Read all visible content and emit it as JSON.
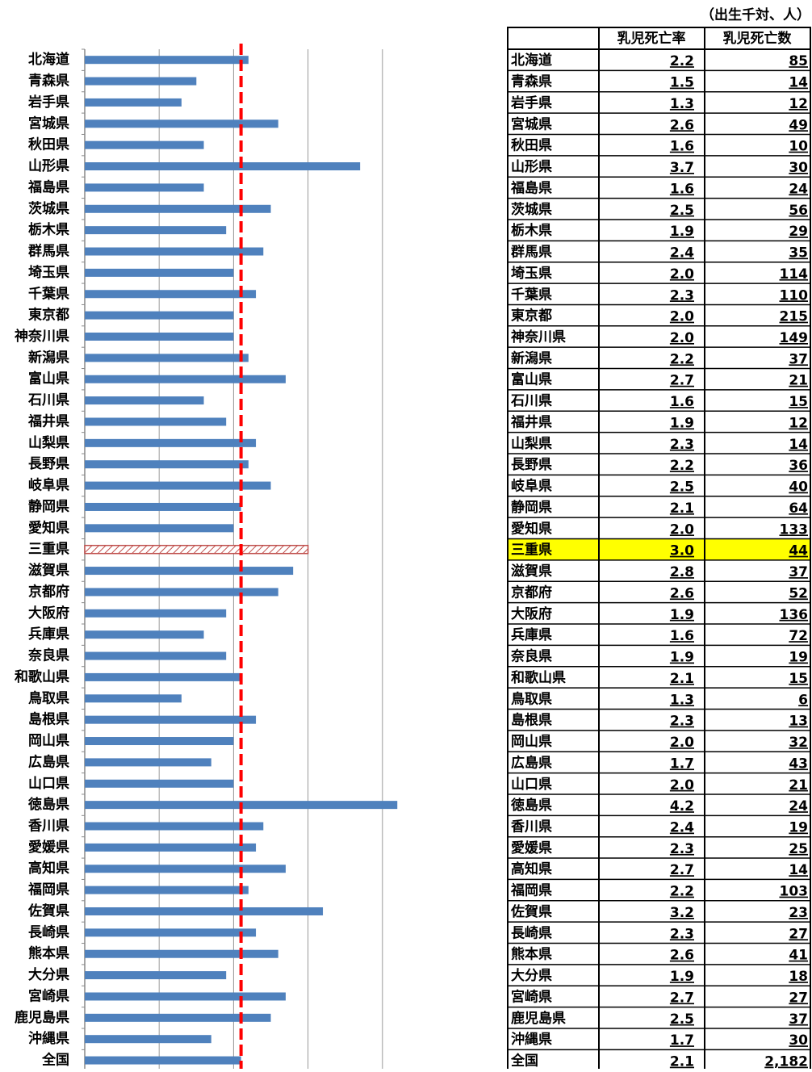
{
  "unit_note": "（出生千対、人）",
  "chart_data": {
    "type": "bar",
    "orientation": "horizontal",
    "categories": [
      "北海道",
      "青森県",
      "岩手県",
      "宮城県",
      "秋田県",
      "山形県",
      "福島県",
      "茨城県",
      "栃木県",
      "群馬県",
      "埼玉県",
      "千葉県",
      "東京都",
      "神奈川県",
      "新潟県",
      "富山県",
      "石川県",
      "福井県",
      "山梨県",
      "長野県",
      "岐阜県",
      "静岡県",
      "愛知県",
      "三重県",
      "滋賀県",
      "京都府",
      "大阪府",
      "兵庫県",
      "奈良県",
      "和歌山県",
      "鳥取県",
      "島根県",
      "岡山県",
      "広島県",
      "山口県",
      "徳島県",
      "香川県",
      "愛媛県",
      "高知県",
      "福岡県",
      "佐賀県",
      "長崎県",
      "熊本県",
      "大分県",
      "宮崎県",
      "鹿児島県",
      "沖縄県",
      "全国"
    ],
    "values": [
      2.2,
      1.5,
      1.3,
      2.6,
      1.6,
      3.7,
      1.6,
      2.5,
      1.9,
      2.4,
      2.0,
      2.3,
      2.0,
      2.0,
      2.2,
      2.7,
      1.6,
      1.9,
      2.3,
      2.2,
      2.5,
      2.1,
      2.0,
      3.0,
      2.8,
      2.6,
      1.9,
      1.6,
      1.9,
      2.1,
      1.3,
      2.3,
      2.0,
      1.7,
      2.0,
      4.2,
      2.4,
      2.3,
      2.7,
      2.2,
      3.2,
      2.3,
      2.6,
      1.9,
      2.7,
      2.5,
      1.7,
      2.1
    ],
    "value_labels": [
      "2.2",
      "1.5",
      "1.3",
      "2.6",
      "1.6",
      "3.7",
      "1.6",
      "2.5",
      "1.9",
      "2.4",
      "2.0",
      "2.3",
      "2.0",
      "2.0",
      "2.2",
      "2.7",
      "1.6",
      "1.9",
      "2.3",
      "2.2",
      "2.5",
      "2.1",
      "2.0",
      "3.0",
      "2.8",
      "2.6",
      "1.9",
      "1.6",
      "1.9",
      "2.1",
      "1.3",
      "2.3",
      "2.0",
      "1.7",
      "2.0",
      "4.2",
      "2.4",
      "2.3",
      "2.7",
      "2.2",
      "3.2",
      "2.3",
      "2.6",
      "1.9",
      "2.7",
      "2.5",
      "1.7",
      "2.1"
    ],
    "color": "#4f81bd",
    "highlight_index": 23,
    "highlight_color": "#c0504d",
    "reference_color": "#ff0000",
    "xlim": [
      0,
      5
    ],
    "xticks": [
      0,
      1,
      2,
      3,
      4
    ],
    "grid": true
  },
  "table": {
    "columns": [
      "乳児死亡率",
      "乳児死亡数"
    ],
    "highlight_color": "#ffff00",
    "counts": [
      85,
      14,
      12,
      49,
      10,
      30,
      24,
      56,
      29,
      35,
      114,
      110,
      215,
      149,
      37,
      21,
      15,
      12,
      14,
      36,
      40,
      64,
      133,
      44,
      37,
      52,
      136,
      72,
      19,
      15,
      6,
      13,
      32,
      43,
      21,
      24,
      19,
      25,
      14,
      103,
      23,
      27,
      41,
      18,
      27,
      37,
      30,
      {
        "value": 2182,
        "label": "2,182"
      }
    ]
  }
}
